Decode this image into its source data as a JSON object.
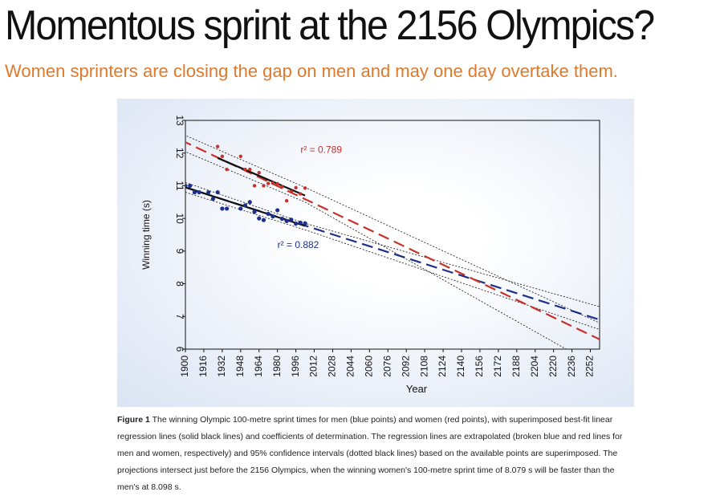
{
  "title": "Momentous sprint at the 2156 Olympics?",
  "subtitle": "Women sprinters are closing the gap on men and may one day overtake them.",
  "caption": {
    "label": "Figure 1",
    "text": " The winning Olympic 100-metre sprint times for men (blue points) and women (red points), with superimposed best-fit linear regression lines (solid black lines) and coefficients of determination. The regression lines are extrapolated (broken blue and red lines for men and women, respectively) and 95% confidence intervals (dotted black lines) based on the available points are superimposed. The projections intersect just before the 2156 Olympics, when the winning women's 100-metre sprint time of 8.079 s will be faster than the men's at 8.098 s."
  },
  "colors": {
    "men": "#1b2f8c",
    "women": "#c8312b",
    "subtitle": "#e0792a"
  },
  "chart_data": {
    "type": "scatter",
    "xlabel": "Year",
    "ylabel": "Winning time (s)",
    "xlim": [
      1900,
      2260
    ],
    "ylim": [
      6,
      13
    ],
    "x_ticks": [
      1900,
      1916,
      1932,
      1948,
      1964,
      1980,
      1996,
      2012,
      2028,
      2044,
      2060,
      2076,
      2092,
      2108,
      2124,
      2140,
      2156,
      2172,
      2188,
      2204,
      2220,
      2236,
      2252
    ],
    "y_ticks": [
      6,
      7,
      8,
      9,
      10,
      11,
      12,
      13
    ],
    "annotations": [
      {
        "text": "r² = 0.789",
        "x": 2000,
        "y": 12.0,
        "series": "women"
      },
      {
        "text": "r² = 0.882",
        "x": 1980,
        "y": 9.1,
        "series": "men"
      }
    ],
    "series": [
      {
        "key": "men",
        "x": [
          1900,
          1904,
          1908,
          1912,
          1920,
          1924,
          1928,
          1932,
          1936,
          1948,
          1952,
          1956,
          1960,
          1964,
          1968,
          1972,
          1976,
          1980,
          1984,
          1988,
          1992,
          1996,
          2000,
          2004
        ],
        "y": [
          11.0,
          11.0,
          10.8,
          10.8,
          10.8,
          10.6,
          10.8,
          10.3,
          10.3,
          10.3,
          10.4,
          10.5,
          10.2,
          10.0,
          9.95,
          10.14,
          10.06,
          10.25,
          9.99,
          9.92,
          9.96,
          9.84,
          9.87,
          9.85
        ],
        "fit": [
          [
            1900,
            10.95
          ],
          [
            2004,
            9.77
          ]
        ],
        "extrapolation": [
          [
            1900,
            10.95
          ],
          [
            2260,
            6.9
          ]
        ],
        "ci_upper": [
          [
            1900,
            11.1
          ],
          [
            2004,
            9.85
          ],
          [
            2260,
            7.3
          ]
        ],
        "ci_lower": [
          [
            1900,
            10.8
          ],
          [
            2004,
            9.65
          ],
          [
            2260,
            6.6
          ]
        ]
      },
      {
        "key": "women",
        "x": [
          1928,
          1932,
          1936,
          1948,
          1952,
          1956,
          1960,
          1964,
          1968,
          1972,
          1976,
          1980,
          1984,
          1988,
          1992,
          1996,
          2000,
          2004
        ],
        "y": [
          12.2,
          11.9,
          11.5,
          11.9,
          11.5,
          11.5,
          11.0,
          11.4,
          11.0,
          11.07,
          11.08,
          11.06,
          10.97,
          10.54,
          10.82,
          10.94,
          10.75,
          10.93
        ],
        "fit": [
          [
            1928,
            11.85
          ],
          [
            2004,
            10.7
          ]
        ],
        "extrapolation": [
          [
            1896,
            12.4
          ],
          [
            2260,
            6.3
          ]
        ],
        "ci_upper": [
          [
            1896,
            12.6
          ],
          [
            2004,
            10.95
          ],
          [
            2260,
            6.8
          ]
        ],
        "ci_lower": [
          [
            1896,
            12.1
          ],
          [
            2004,
            10.5
          ],
          [
            2236,
            5.9
          ]
        ]
      }
    ]
  }
}
